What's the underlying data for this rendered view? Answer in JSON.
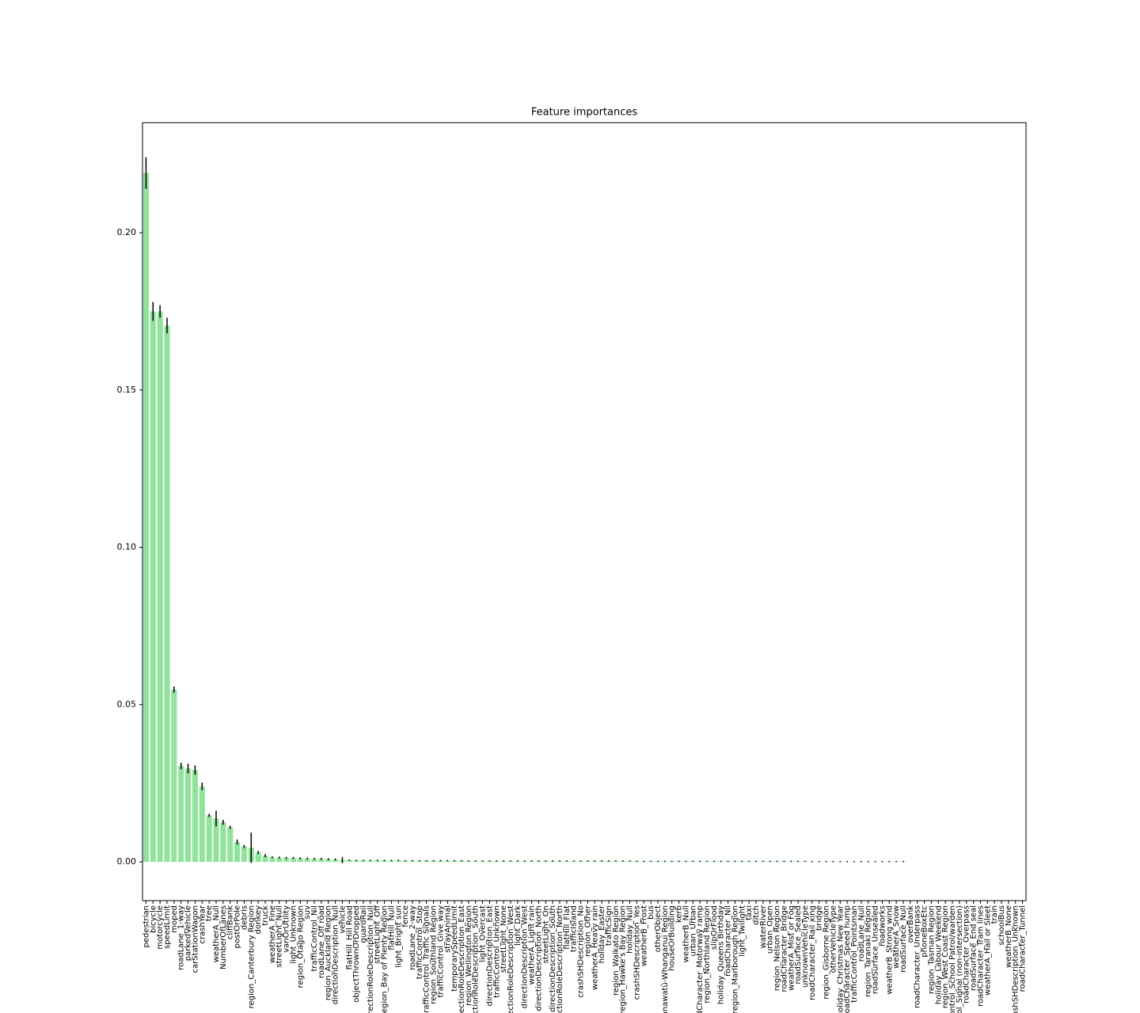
{
  "chart_data": {
    "type": "bar",
    "title": "Feature importances",
    "color": "#90e39a",
    "error_color": "#000000",
    "categories": [
      "pedestrian",
      "bicycle",
      "motorcycle",
      "speedLimit",
      "moped",
      "roadLane_1-way",
      "parkedVehicle",
      "carStationWagon",
      "crashYear",
      "tree",
      "weatherA_Null",
      "NumberOfLanes",
      "cliffBank",
      "postOrPole",
      "debris",
      "region_Canterbury Region",
      "donkey",
      "truck",
      "weatherA_Fine",
      "streetLight_Null",
      "vanOrUtility",
      "light_Unknown",
      "region_Otago Region",
      "suv",
      "trafficControl_Nil",
      "roadLane_Off road",
      "region_Auckland Region",
      "directionDescription_Null",
      "vehicle",
      "flatHill_Hill Road",
      "objectThrownOrDropped",
      "guardRail",
      "directionRoleDescription_Null",
      "streetLight_Off",
      "region_Bay of Plenty Region",
      "flatHill_Null",
      "light_Bright sun",
      "fence",
      "roadLane_2-way",
      "trafficControl_Stop",
      "trafficControl_Traffic Signals",
      "region_Southland Region",
      "trafficControl_Give way",
      "strayAnimal",
      "temporarySpeedLimit",
      "directionRoleDescription_East",
      "region_Wellington Region",
      "directionRoleDescription_South",
      "light_Overcast",
      "directionDescription_East",
      "trafficControl_Unknown",
      "streetLight_None",
      "directionRoleDescription_West",
      "light_Dark",
      "directionDescription_West",
      "weatherA_Light rain",
      "directionDescription_North",
      "streetLight_On",
      "directionDescription_South",
      "directionRoleDescription_North",
      "flatHill_Flat",
      "trafficIsland",
      "crashSHDescription_No",
      "region_Other",
      "weatherA_Heavy rain",
      "holiday_Easter",
      "trafficSign",
      "region_Waikato Region",
      "region_Hawke's Bay Region",
      "holiday_Null",
      "crashSHDescription_Yes",
      "weatherB_Frost",
      "bus",
      "otherObject",
      "region_Manawatū-Whanganui Region",
      "houseOrBuilding",
      "kerb",
      "weatherB_Null",
      "urban_Urban",
      "roadCharacter_Motorway ramp",
      "region_Northland Region",
      "slipOrFlood",
      "holiday_Queens Birthday",
      "roadCharacter_Nil",
      "region_Marlborough Region",
      "light_Twilight",
      "taxi",
      "ditch",
      "waterRiver",
      "urban_Open",
      "region_Nelson Region",
      "roadCharacter_Bridge",
      "weatherA_Mist or Fog",
      "roadSurface_Sealed",
      "unknownVehicleType",
      "roadCharacter_Rail xing",
      "bridge",
      "region_Gisborne Region",
      "otherVehicleType",
      "holiday_Christmas New Year",
      "roadCharacter_Speed hump",
      "trafficControl_Pointsman",
      "roadLane_Null",
      "region_Taranaki Region",
      "roadSurface_Unsealed",
      "roadworks",
      "weatherB_Strong wind",
      "weatherA_Snow",
      "roadSurface_Null",
      "overBank",
      "roadCharacter_Underpass",
      "phoneBoxEtc",
      "region_Tasman Region",
      "holiday_Labour Weekend",
      "region_West Coast Region",
      "trafficControl_School Patrol/warden",
      "trafficControl_Signal (non-intersection)",
      "roadCharacter_Overpass",
      "roadSurface_End seal",
      "roadCharacter_Tram lines",
      "weatherA_Hail or Sleet",
      "train",
      "schoolBus",
      "weatherB_None",
      "crashSHDescription_Unknown",
      "roadCharacter_Tunnel"
    ],
    "values": [
      0.219,
      0.175,
      0.175,
      0.1705,
      0.0548,
      0.0305,
      0.0297,
      0.0292,
      0.024,
      0.0148,
      0.0138,
      0.0126,
      0.011,
      0.0063,
      0.0049,
      0.0045,
      0.003,
      0.002,
      0.0015,
      0.0014,
      0.0013,
      0.0013,
      0.0012,
      0.0011,
      0.001,
      0.001,
      0.0009,
      0.0008,
      0.0006,
      0.0006,
      0.0005,
      0.0005,
      0.0005,
      0.0005,
      0.0005,
      0.0005,
      0.0005,
      0.0004,
      0.0004,
      0.0004,
      0.0004,
      0.0004,
      0.0004,
      0.0004,
      0.0004,
      0.0004,
      0.0003,
      0.0003,
      0.0003,
      0.0003,
      0.0003,
      0.0003,
      0.0003,
      0.0003,
      0.0003,
      0.0003,
      0.0003,
      0.0003,
      0.0003,
      0.0003,
      0.0003,
      0.0003,
      0.0003,
      0.0003,
      0.0003,
      0.0003,
      0.0003,
      0.0003,
      0.0003,
      0.0003,
      0.0002,
      0.0002,
      0.0002,
      0.0002,
      0.0002,
      0.0002,
      0.0002,
      0.0002,
      0.0002,
      0.0002,
      0.0002,
      0.0002,
      0.0002,
      0.0002,
      0.0002,
      0.0002,
      0.0002,
      0.0002,
      0.0002,
      0.0002,
      0.0002,
      0.0002,
      0.0002,
      0.0002,
      0.0002,
      0.0001,
      0.0001,
      0.0001,
      0.0001,
      0.0001,
      0.0001,
      0.0001,
      0.0001,
      0.0001,
      0.0001,
      0.0001,
      0.0001,
      0.0001,
      0.0001,
      0,
      0,
      0,
      0,
      0,
      0,
      0,
      0,
      0,
      0,
      0,
      0,
      0,
      0,
      0,
      0,
      0
    ],
    "errors": [
      0.005,
      0.003,
      0.002,
      0.0025,
      0.001,
      0.001,
      0.0015,
      0.0015,
      0.0012,
      0.0005,
      0.0025,
      0.0008,
      0.0005,
      0.0008,
      0.0005,
      0.0048,
      0.0005,
      0.0005,
      0.0003,
      0.0003,
      0.0003,
      0.0003,
      0.0003,
      0.0003,
      0.0003,
      0.0003,
      0.0003,
      0.0003,
      0.001,
      0.0002,
      0.0002,
      0.0002,
      0.0002,
      0.0002,
      0.0002,
      0.0002,
      0.0002,
      0.0002,
      0.0002,
      0.0002,
      0.0002,
      0.0002,
      0.0002,
      0.0002,
      0.0002,
      0.0002,
      0.0002,
      0.0002,
      0.0002,
      0.0002,
      0.0002,
      0.0002,
      0.0002,
      0.0002,
      0.0002,
      0.0002,
      0.0002,
      0.0002,
      0.0002,
      0.0002,
      0.0002,
      0.0002,
      0.0002,
      0.0002,
      0.0002,
      0.0002,
      0.0002,
      0.0002,
      0.0002,
      0.0002,
      0.0002,
      0.0002,
      0.0002,
      0.0002,
      0.0002,
      0.0002,
      0.0002,
      0.0002,
      0.0002,
      0.0002,
      0.0002,
      0.0002,
      0.0002,
      0.0002,
      0.0002,
      0.0002,
      0.0002,
      0.0002,
      0.0002,
      0.0002,
      0.0002,
      0.0002,
      0.0002,
      0.0002,
      0.0002,
      0.0002,
      0.0002,
      0.0002,
      0.0002,
      0.0002,
      0.0002,
      0.0002,
      0.0002,
      0.0002,
      0.0002,
      0.0002,
      0.0002,
      0.0002,
      0.0002,
      0,
      0,
      0,
      0,
      0,
      0,
      0,
      0,
      0,
      0,
      0,
      0,
      0,
      0,
      0,
      0,
      0
    ],
    "ylim": [
      -0.0123,
      0.235
    ],
    "yticks": [
      {
        "value": 0,
        "label": "0.00"
      },
      {
        "value": 0.05,
        "label": "0.05"
      },
      {
        "value": 0.1,
        "label": "0.10"
      },
      {
        "value": 0.15,
        "label": "0.15"
      },
      {
        "value": 0.2,
        "label": "0.20"
      }
    ]
  }
}
